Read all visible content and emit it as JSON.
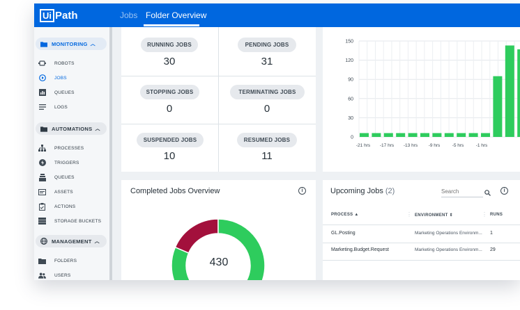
{
  "app": {
    "logo_box": "Ui",
    "logo_text": "Path"
  },
  "nav": {
    "tab_jobs": "Jobs",
    "tab_folder": "Folder Overview"
  },
  "sidebar": {
    "sections": [
      {
        "label": "MONITORING",
        "icon": "folder-icon",
        "items": [
          {
            "label": "ROBOTS",
            "icon": "robot-icon"
          },
          {
            "label": "JOBS",
            "icon": "play-circle-icon"
          },
          {
            "label": "QUEUES",
            "icon": "bar-chart-icon"
          },
          {
            "label": "LOGS",
            "icon": "lines-icon"
          }
        ]
      },
      {
        "label": "AUTOMATIONS",
        "icon": "folder-icon",
        "items": [
          {
            "label": "PROCESSES",
            "icon": "hierarchy-icon"
          },
          {
            "label": "TRIGGERS",
            "icon": "trigger-icon"
          },
          {
            "label": "QUEUES",
            "icon": "stack-icon"
          },
          {
            "label": "ASSETS",
            "icon": "asset-icon"
          },
          {
            "label": "ACTIONS",
            "icon": "clipboard-icon"
          },
          {
            "label": "STORAGE BUCKETS",
            "icon": "bucket-icon"
          }
        ]
      },
      {
        "label": "MANAGEMENT",
        "icon": "globe-icon",
        "items": [
          {
            "label": "FOLDERS",
            "icon": "folder-icon"
          },
          {
            "label": "USERS",
            "icon": "users-icon"
          }
        ]
      }
    ]
  },
  "job_stats": [
    {
      "label": "RUNNING JOBS",
      "value": "30"
    },
    {
      "label": "PENDING JOBS",
      "value": "31"
    },
    {
      "label": "STOPPING JOBS",
      "value": "0"
    },
    {
      "label": "TERMINATING JOBS",
      "value": "0"
    },
    {
      "label": "SUSPENDED JOBS",
      "value": "10"
    },
    {
      "label": "RESUMED JOBS",
      "value": "11"
    }
  ],
  "chart_data": {
    "type": "bar",
    "y_ticks": [
      "150",
      "120",
      "90",
      "60",
      "30",
      "0"
    ],
    "ylim": [
      0,
      150
    ],
    "x_tick_labels": [
      "-21 hrs",
      "-17 hrs",
      "-13 hrs",
      "-9 hrs",
      "-5 hrs",
      "-1 hrs"
    ],
    "values": [
      6,
      6,
      6,
      6,
      6,
      6,
      6,
      6,
      6,
      6,
      6,
      95,
      143,
      137
    ],
    "bar_color": "#2ecc5d",
    "grid": true
  },
  "completed": {
    "title": "Completed Jobs Overview",
    "total": "430",
    "slices": [
      {
        "value": 80,
        "color": "#a3103c"
      },
      {
        "value": 350,
        "color": "#2ecc5d"
      }
    ]
  },
  "upcoming": {
    "title": "Upcoming Jobs",
    "count": "(2)",
    "search_placeholder": "Search",
    "columns": [
      "PROCESS",
      "ENVIRONMENT",
      "RUNS"
    ],
    "rows": [
      {
        "process": "GL.Posting",
        "environment": "Marketing Operations Environm...",
        "runs": "1"
      },
      {
        "process": "Marketing.Budget.Request",
        "environment": "Marketing Operations Environm...",
        "runs": "29"
      }
    ]
  }
}
